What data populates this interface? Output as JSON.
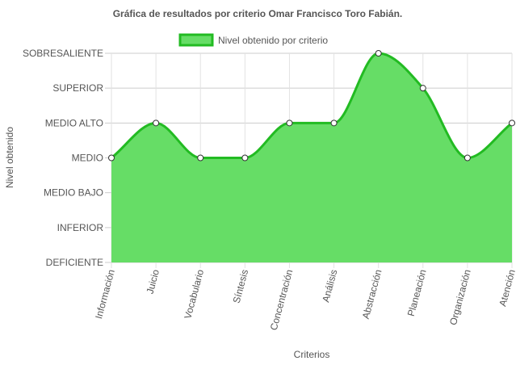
{
  "chart_data": {
    "type": "line",
    "title": "Gráfica de resultados por criterio Omar Francisco Toro Fabián.",
    "xlabel": "Criterios",
    "ylabel": "Nivel obtenido",
    "categories": [
      "Información",
      "Juicio",
      "Vocabulario",
      "Síntesis",
      "Concentración",
      "Análisis",
      "Abstracción",
      "Planeación",
      "Organización",
      "Atención"
    ],
    "y_levels": [
      "DEFICIENTE",
      "INFERIOR",
      "MEDIO BAJO",
      "MEDIO",
      "MEDIO ALTO",
      "SUPERIOR",
      "SOBRESALIENTE"
    ],
    "ylim": [
      0,
      6
    ],
    "grid": true,
    "legend_position": "top-center",
    "series": [
      {
        "name": "Nivel obtenido por criterio",
        "values": [
          3,
          4,
          3,
          3,
          4,
          4,
          6,
          5,
          3,
          4
        ],
        "fill_color": "#66dd66",
        "line_color": "#22bb22"
      }
    ]
  }
}
